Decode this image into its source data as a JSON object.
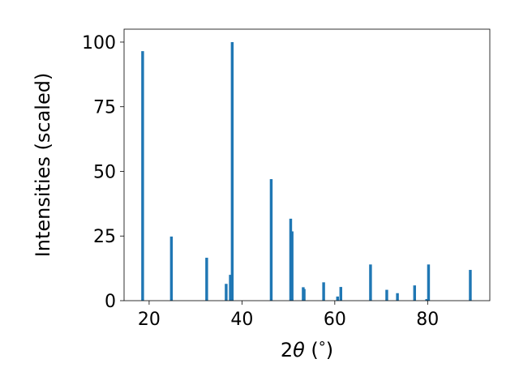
{
  "chart_data": {
    "type": "bar",
    "title": "",
    "xlabel": "2θ (°)",
    "ylabel": "Intensities (scaled)",
    "xlim": [
      14.6,
      93.4
    ],
    "ylim": [
      0,
      105
    ],
    "xticks": [
      20,
      40,
      60,
      80
    ],
    "yticks": [
      0,
      25,
      50,
      75,
      100
    ],
    "bar_width": 0.6,
    "grid": false,
    "color": "#1f77b4",
    "x": [
      18.6,
      24.8,
      32.4,
      36.6,
      37.5,
      37.9,
      46.3,
      50.5,
      50.8,
      53.2,
      53.4,
      57.6,
      60.6,
      61.3,
      67.7,
      71.2,
      73.5,
      77.2,
      79.8,
      80.2,
      89.2
    ],
    "values": [
      96.5,
      24.8,
      16.6,
      6.5,
      10.0,
      100.0,
      47.0,
      31.7,
      26.8,
      5.2,
      4.5,
      7.1,
      1.6,
      5.3,
      14.0,
      4.2,
      2.9,
      5.9,
      0.6,
      14.0,
      11.9
    ]
  }
}
